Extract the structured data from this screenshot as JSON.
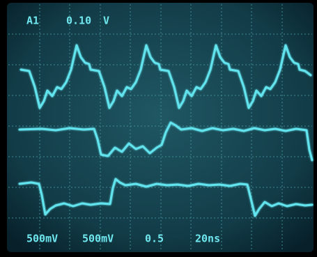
{
  "screen": {
    "channel": "A1",
    "scale": "0.10",
    "unit": "V",
    "footer": {
      "ch1": "500mV",
      "ch2": "500mV",
      "ch3": "0.5",
      "time": "20ns"
    }
  }
}
